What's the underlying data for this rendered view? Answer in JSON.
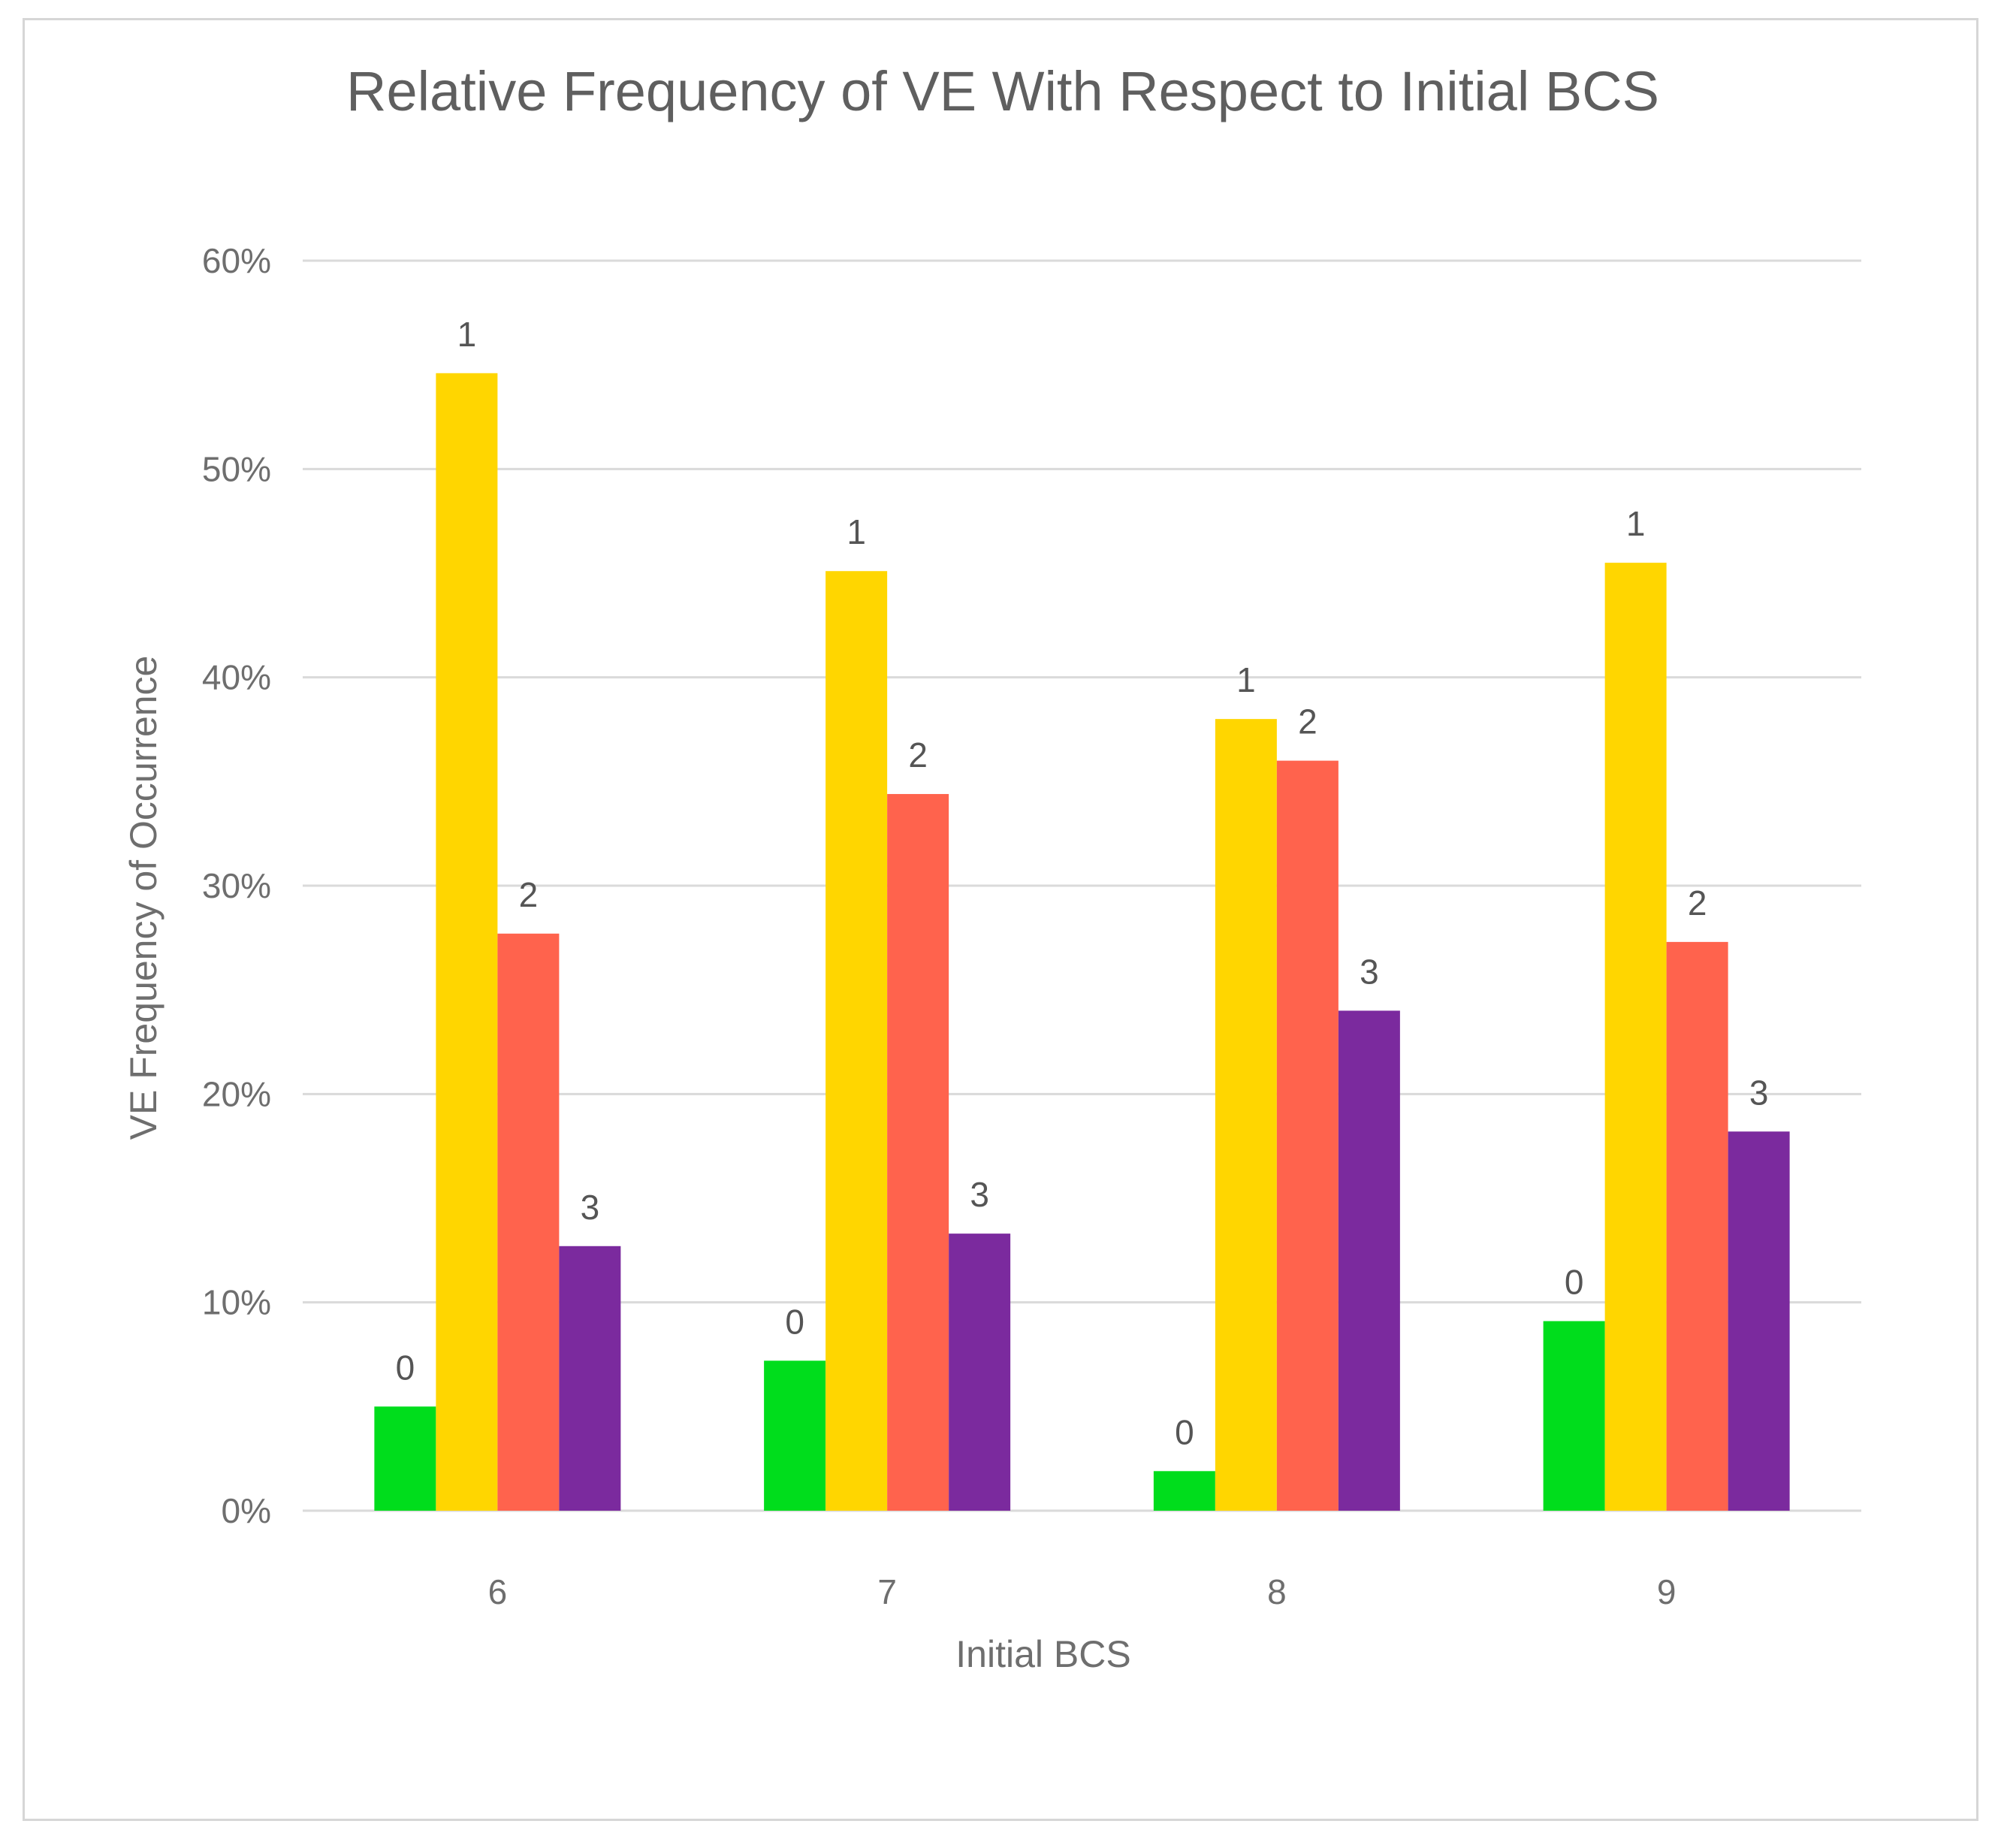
{
  "chart_data": {
    "type": "bar",
    "title": "Relative Frequency of VE With Respect to Initial BCS",
    "xlabel": "Initial BCS",
    "ylabel": "VE Frequency of Occurrence",
    "categories": [
      "6",
      "7",
      "8",
      "9"
    ],
    "ylim": [
      0,
      60
    ],
    "yticks": [
      0,
      10,
      20,
      30,
      40,
      50,
      60
    ],
    "ytick_labels": [
      "0%",
      "10%",
      "20%",
      "30%",
      "40%",
      "50%",
      "60%"
    ],
    "grid": true,
    "legend": "none",
    "series": [
      {
        "name": "0",
        "label": "0",
        "color": "#00dd1c",
        "values": [
          5.0,
          7.2,
          1.9,
          9.1
        ]
      },
      {
        "name": "1",
        "label": "1",
        "color": "#ffd600",
        "values": [
          54.6,
          45.1,
          38.0,
          45.5
        ]
      },
      {
        "name": "2",
        "label": "2",
        "color": "#ff634d",
        "values": [
          27.7,
          34.4,
          36.0,
          27.3
        ]
      },
      {
        "name": "3",
        "label": "3",
        "color": "#7b2a9e",
        "values": [
          12.7,
          13.3,
          24.0,
          18.2
        ]
      }
    ]
  }
}
